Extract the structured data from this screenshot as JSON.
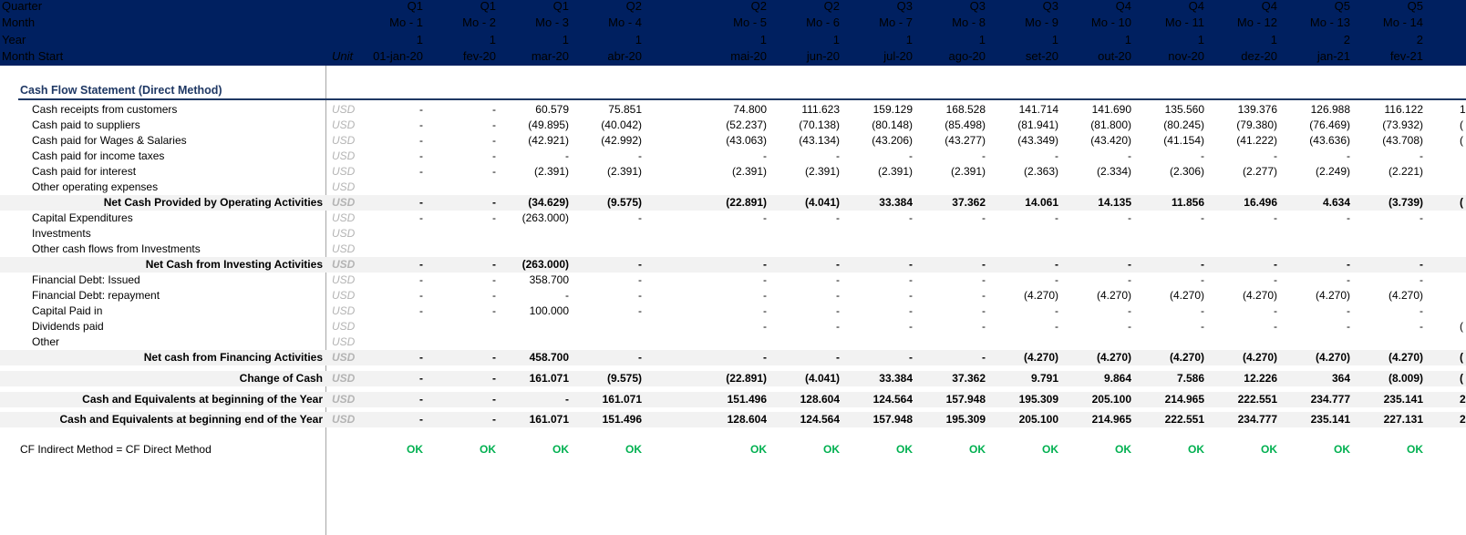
{
  "header": {
    "row_labels": [
      "Quarter",
      "Month",
      "Year",
      "Month Start"
    ],
    "unit_label": "Unit",
    "columns": [
      {
        "quarter": "Q1",
        "month": "Mo - 1",
        "year": "1",
        "start": "01-jan-20"
      },
      {
        "quarter": "Q1",
        "month": "Mo - 2",
        "year": "1",
        "start": "fev-20"
      },
      {
        "quarter": "Q1",
        "month": "Mo - 3",
        "year": "1",
        "start": "mar-20"
      },
      {
        "quarter": "Q2",
        "month": "Mo - 4",
        "year": "1",
        "start": "abr-20"
      },
      {
        "quarter": "Q2",
        "month": "Mo - 5",
        "year": "1",
        "start": "mai-20"
      },
      {
        "quarter": "Q2",
        "month": "Mo - 6",
        "year": "1",
        "start": "jun-20"
      },
      {
        "quarter": "Q3",
        "month": "Mo - 7",
        "year": "1",
        "start": "jul-20"
      },
      {
        "quarter": "Q3",
        "month": "Mo - 8",
        "year": "1",
        "start": "ago-20"
      },
      {
        "quarter": "Q3",
        "month": "Mo - 9",
        "year": "1",
        "start": "set-20"
      },
      {
        "quarter": "Q4",
        "month": "Mo - 10",
        "year": "1",
        "start": "out-20"
      },
      {
        "quarter": "Q4",
        "month": "Mo - 11",
        "year": "1",
        "start": "nov-20"
      },
      {
        "quarter": "Q4",
        "month": "Mo - 12",
        "year": "1",
        "start": "dez-20"
      },
      {
        "quarter": "Q5",
        "month": "Mo - 13",
        "year": "2",
        "start": "jan-21"
      },
      {
        "quarter": "Q5",
        "month": "Mo - 14",
        "year": "2",
        "start": "fev-21"
      }
    ]
  },
  "section_title": "Cash Flow Statement (Direct Method)",
  "rows": [
    {
      "label": "Cash receipts from customers",
      "unit": "USD",
      "total": false,
      "values": [
        "-",
        "-",
        "60.579",
        "75.851",
        "74.800",
        "111.623",
        "159.129",
        "168.528",
        "141.714",
        "141.690",
        "135.560",
        "139.376",
        "126.988",
        "116.122"
      ],
      "edge": "1"
    },
    {
      "label": "Cash paid to suppliers",
      "unit": "USD",
      "total": false,
      "values": [
        "-",
        "-",
        "(49.895)",
        "(40.042)",
        "(52.237)",
        "(70.138)",
        "(80.148)",
        "(85.498)",
        "(81.941)",
        "(81.800)",
        "(80.245)",
        "(79.380)",
        "(76.469)",
        "(73.932)"
      ],
      "edge": "("
    },
    {
      "label": "Cash paid for Wages & Salaries",
      "unit": "USD",
      "total": false,
      "values": [
        "-",
        "-",
        "(42.921)",
        "(42.992)",
        "(43.063)",
        "(43.134)",
        "(43.206)",
        "(43.277)",
        "(43.349)",
        "(43.420)",
        "(41.154)",
        "(41.222)",
        "(43.636)",
        "(43.708)"
      ],
      "edge": "("
    },
    {
      "label": "Cash paid for income taxes",
      "unit": "USD",
      "total": false,
      "values": [
        "-",
        "-",
        "-",
        "-",
        "-",
        "-",
        "-",
        "-",
        "-",
        "-",
        "-",
        "-",
        "-",
        "-"
      ],
      "edge": ""
    },
    {
      "label": "Cash paid for interest",
      "unit": "USD",
      "total": false,
      "values": [
        "-",
        "-",
        "(2.391)",
        "(2.391)",
        "(2.391)",
        "(2.391)",
        "(2.391)",
        "(2.391)",
        "(2.363)",
        "(2.334)",
        "(2.306)",
        "(2.277)",
        "(2.249)",
        "(2.221)"
      ],
      "edge": ""
    },
    {
      "label": "Other operating expenses",
      "unit": "USD",
      "total": false,
      "values": [
        "",
        "",
        "",
        "",
        "",
        "",
        "",
        "",
        "",
        "",
        "",
        "",
        "",
        ""
      ],
      "edge": ""
    },
    {
      "label": "Net Cash Provided by Operating Activities",
      "unit": "USD",
      "total": true,
      "values": [
        "-",
        "-",
        "(34.629)",
        "(9.575)",
        "(22.891)",
        "(4.041)",
        "33.384",
        "37.362",
        "14.061",
        "14.135",
        "11.856",
        "16.496",
        "4.634",
        "(3.739)"
      ],
      "edge": "("
    },
    {
      "label": "Capital Expenditures",
      "unit": "USD",
      "total": false,
      "values": [
        "-",
        "-",
        "(263.000)",
        "-",
        "-",
        "-",
        "-",
        "-",
        "-",
        "-",
        "-",
        "-",
        "-",
        "-"
      ],
      "edge": ""
    },
    {
      "label": "Investments",
      "unit": "USD",
      "total": false,
      "values": [
        "",
        "",
        "",
        "",
        "",
        "",
        "",
        "",
        "",
        "",
        "",
        "",
        "",
        ""
      ],
      "edge": ""
    },
    {
      "label": "Other cash flows from Investments",
      "unit": "USD",
      "total": false,
      "values": [
        "",
        "",
        "",
        "",
        "",
        "",
        "",
        "",
        "",
        "",
        "",
        "",
        "",
        ""
      ],
      "edge": ""
    },
    {
      "label": "Net Cash from Investing Activities",
      "unit": "USD",
      "total": true,
      "values": [
        "-",
        "-",
        "(263.000)",
        "-",
        "-",
        "-",
        "-",
        "-",
        "-",
        "-",
        "-",
        "-",
        "-",
        "-"
      ],
      "edge": ""
    },
    {
      "label": "Financial Debt: Issued",
      "unit": "USD",
      "total": false,
      "values": [
        "-",
        "-",
        "358.700",
        "-",
        "-",
        "-",
        "-",
        "-",
        "-",
        "-",
        "-",
        "-",
        "-",
        "-"
      ],
      "edge": ""
    },
    {
      "label": "Financial Debt: repayment",
      "unit": "USD",
      "total": false,
      "values": [
        "-",
        "-",
        "-",
        "-",
        "-",
        "-",
        "-",
        "-",
        "(4.270)",
        "(4.270)",
        "(4.270)",
        "(4.270)",
        "(4.270)",
        "(4.270)"
      ],
      "edge": ""
    },
    {
      "label": "Capital Paid in",
      "unit": "USD",
      "total": false,
      "values": [
        "-",
        "-",
        "100.000",
        "-",
        "-",
        "-",
        "-",
        "-",
        "-",
        "-",
        "-",
        "-",
        "-",
        "-"
      ],
      "edge": ""
    },
    {
      "label": "Dividends paid",
      "unit": "USD",
      "total": false,
      "values": [
        "",
        "",
        "",
        "",
        "-",
        "-",
        "-",
        "-",
        "-",
        "-",
        "-",
        "-",
        "-",
        "-"
      ],
      "edge": "("
    },
    {
      "label": "Other",
      "unit": "USD",
      "total": false,
      "values": [
        "",
        "",
        "",
        "",
        "",
        "",
        "",
        "",
        "",
        "",
        "",
        "",
        "",
        ""
      ],
      "edge": ""
    },
    {
      "label": "Net cash from Financing Activities",
      "unit": "USD",
      "total": true,
      "values": [
        "-",
        "-",
        "458.700",
        "-",
        "-",
        "-",
        "-",
        "-",
        "(4.270)",
        "(4.270)",
        "(4.270)",
        "(4.270)",
        "(4.270)",
        "(4.270)"
      ],
      "edge": "("
    },
    {
      "label": "Change of Cash",
      "unit": "USD",
      "total": true,
      "values": [
        "-",
        "-",
        "161.071",
        "(9.575)",
        "(22.891)",
        "(4.041)",
        "33.384",
        "37.362",
        "9.791",
        "9.864",
        "7.586",
        "12.226",
        "364",
        "(8.009)"
      ],
      "edge": "("
    },
    {
      "label": "Cash and Equivalents at beginning of the Year",
      "unit": "USD",
      "total": true,
      "values": [
        "-",
        "-",
        "-",
        "161.071",
        "151.496",
        "128.604",
        "124.564",
        "157.948",
        "195.309",
        "205.100",
        "214.965",
        "222.551",
        "234.777",
        "235.141"
      ],
      "edge": "2"
    },
    {
      "label": "Cash and Equivalents at beginning end of the Year",
      "unit": "USD",
      "total": true,
      "values": [
        "-",
        "-",
        "161.071",
        "151.496",
        "128.604",
        "124.564",
        "157.948",
        "195.309",
        "205.100",
        "214.965",
        "222.551",
        "234.777",
        "235.141",
        "227.131"
      ],
      "edge": "2"
    }
  ],
  "check": {
    "label": "CF Indirect Method = CF Direct Method",
    "values": [
      "OK",
      "OK",
      "OK",
      "OK",
      "OK",
      "OK",
      "OK",
      "OK",
      "OK",
      "OK",
      "OK",
      "OK",
      "OK",
      "OK"
    ]
  },
  "colors": {
    "header_bg": "#002060",
    "title": "#1f3864",
    "ok": "#00b050",
    "unit": "#b4b4b4",
    "total_bg": "#f2f2f2"
  }
}
